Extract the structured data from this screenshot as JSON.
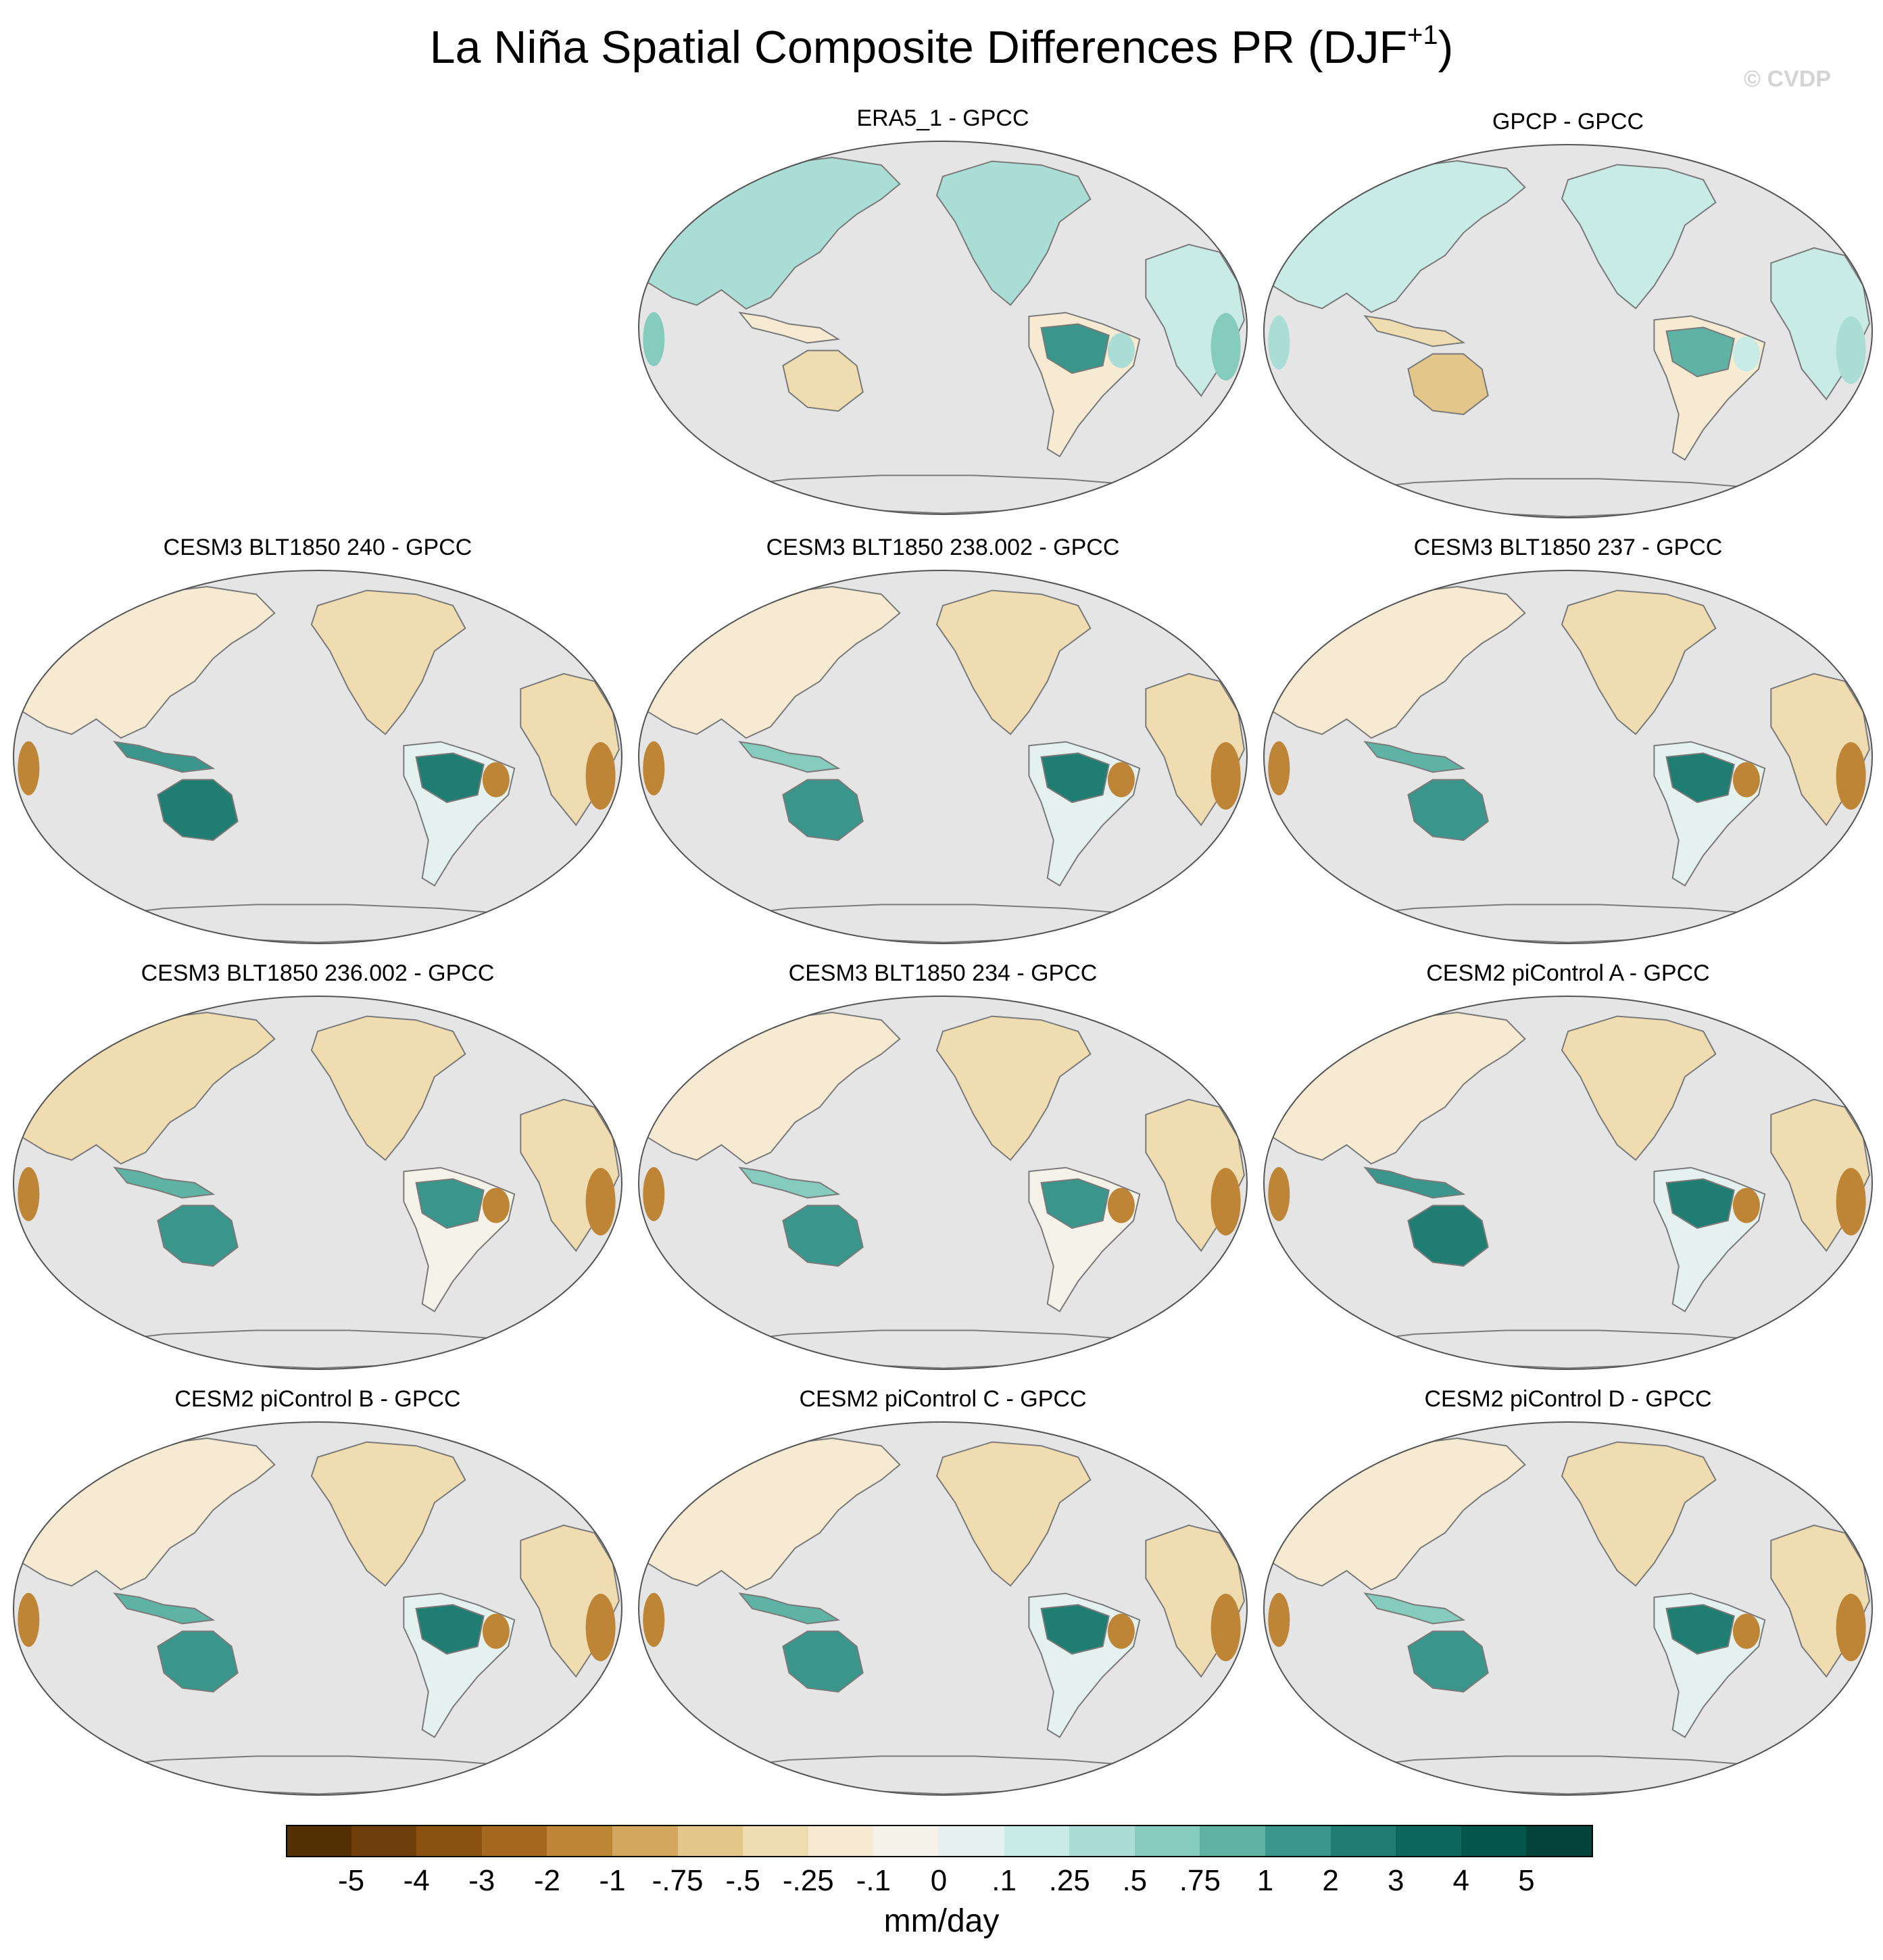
{
  "title": {
    "main": "La Niña Spatial Composite Differences PR (DJF",
    "superscript": "+1",
    "close": ")"
  },
  "watermark": "© CVDP",
  "panels": [
    {
      "label": "ERA5_1 - GPCC",
      "pattern": [
        0.5,
        1.2,
        -0.3,
        0.6,
        0.9
      ]
    },
    {
      "label": "GPCP - GPCC",
      "pattern": [
        0.4,
        0.8,
        -0.6,
        0.3,
        0.5
      ]
    },
    {
      "label": "CESM3 BLT1850 240 - GPCC",
      "pattern": [
        -0.5,
        2.5,
        2.2,
        -2.0,
        -1.2
      ]
    },
    {
      "label": "CESM3 BLT1850 238.002 - GPCC",
      "pattern": [
        -0.6,
        2.3,
        1.2,
        -1.5,
        -1.4
      ]
    },
    {
      "label": "CESM3 BLT1850 237 - GPCC",
      "pattern": [
        -0.7,
        2.6,
        1.8,
        -1.8,
        -1.6
      ]
    },
    {
      "label": "CESM3 BLT1850 236.002 - GPCC",
      "pattern": [
        -0.8,
        1.8,
        1.6,
        -1.6,
        -1.7
      ]
    },
    {
      "label": "CESM3 BLT1850 234 - GPCC",
      "pattern": [
        -0.5,
        1.7,
        1.3,
        -1.4,
        -1.3
      ]
    },
    {
      "label": "CESM2 piControl A - GPCC",
      "pattern": [
        -0.6,
        2.2,
        2.0,
        -1.7,
        -1.5
      ]
    },
    {
      "label": "CESM2 piControl B - GPCC",
      "pattern": [
        -0.4,
        2.0,
        1.5,
        -1.8,
        -1.6
      ]
    },
    {
      "label": "CESM2 piControl C - GPCC",
      "pattern": [
        -0.5,
        2.6,
        1.7,
        -2.0,
        -1.5
      ]
    },
    {
      "label": "CESM2 piControl D - GPCC",
      "pattern": [
        -0.4,
        2.1,
        1.4,
        -1.7,
        -1.5
      ]
    }
  ],
  "colorbar": {
    "colors": [
      "#543005",
      "#6e3f0a",
      "#8a5111",
      "#a6671f",
      "#bf8536",
      "#d3a760",
      "#e3c68a",
      "#efdcb1",
      "#f6ebd2",
      "#f5f2ea",
      "#e5f1ef",
      "#c9ebe5",
      "#a9ddd5",
      "#86ccbe",
      "#5fb3a5",
      "#3a968a",
      "#1f7d72",
      "#0d675d",
      "#04554c",
      "#01423a"
    ],
    "labels": [
      "-5",
      "-4",
      "-3",
      "-2",
      "-1",
      "-.75",
      "-.5",
      "-.25",
      "-.1",
      "0",
      ".1",
      ".25",
      ".5",
      ".75",
      "1",
      "2",
      "3",
      "4",
      "5"
    ],
    "units": "mm/day"
  },
  "colors": {
    "ocean": "#e5e5e5",
    "coast": "#7a7a7a",
    "frame": "#555555"
  }
}
